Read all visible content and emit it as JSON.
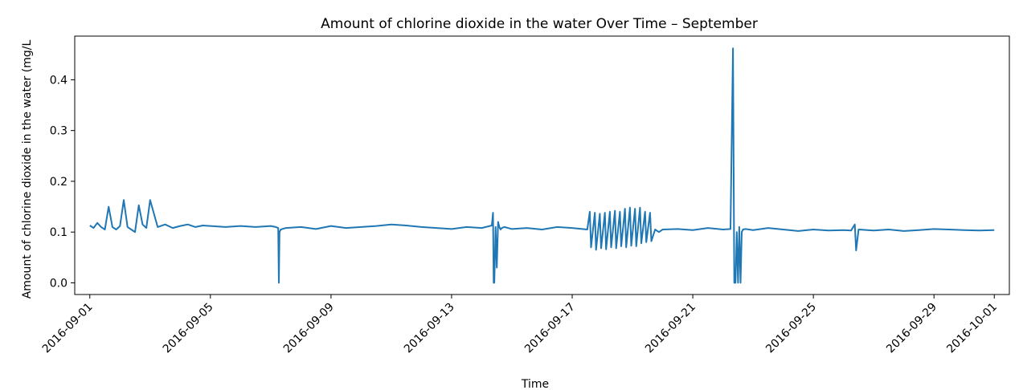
{
  "chart_data": {
    "type": "line",
    "title": "Amount of chlorine dioxide in the water Over Time – September",
    "xlabel": "Time",
    "ylabel": "Amount of chlorine dioxide in the water (mg/L",
    "xlim": [
      "2016-08-31T12:00",
      "2016-10-01T12:00"
    ],
    "ylim": [
      -0.023,
      0.486
    ],
    "x_ticks": [
      "2016-09-01",
      "2016-09-05",
      "2016-09-09",
      "2016-09-13",
      "2016-09-17",
      "2016-09-21",
      "2016-09-25",
      "2016-09-29",
      "2016-10-01"
    ],
    "y_ticks": [
      "0.0",
      "0.1",
      "0.2",
      "0.3",
      "0.4"
    ],
    "grid": false,
    "line_color": "#1f77b4",
    "series": [
      {
        "x": [
          "2016-09-01T00:00",
          "2016-09-01T03:00",
          "2016-09-01T06:00",
          "2016-09-01T09:00",
          "2016-09-01T12:00",
          "2016-09-01T15:00",
          "2016-09-01T18:00",
          "2016-09-01T21:00",
          "2016-09-02T00:00",
          "2016-09-02T03:00",
          "2016-09-02T06:00",
          "2016-09-02T09:00",
          "2016-09-02T12:00",
          "2016-09-02T15:00",
          "2016-09-02T18:00",
          "2016-09-02T21:00",
          "2016-09-03T00:00",
          "2016-09-03T06:00",
          "2016-09-03T12:00",
          "2016-09-03T18:00",
          "2016-09-04T00:00",
          "2016-09-04T06:00",
          "2016-09-04T12:00",
          "2016-09-04T18:00",
          "2016-09-05T00:00",
          "2016-09-05T12:00",
          "2016-09-06T00:00",
          "2016-09-06T12:00",
          "2016-09-07T00:00",
          "2016-09-07T04:00",
          "2016-09-07T06:00",
          "2016-09-07T06:30",
          "2016-09-07T07:00",
          "2016-09-07T08:00",
          "2016-09-07T12:00",
          "2016-09-08T00:00",
          "2016-09-08T12:00",
          "2016-09-09T00:00",
          "2016-09-09T12:00",
          "2016-09-10T00:00",
          "2016-09-10T12:00",
          "2016-09-11T00:00",
          "2016-09-11T12:00",
          "2016-09-12T00:00",
          "2016-09-12T12:00",
          "2016-09-13T00:00",
          "2016-09-13T12:00",
          "2016-09-14T00:00",
          "2016-09-14T08:00",
          "2016-09-14T09:00",
          "2016-09-14T09:30",
          "2016-09-14T10:00",
          "2016-09-14T11:00",
          "2016-09-14T12:00",
          "2016-09-14T13:00",
          "2016-09-14T14:00",
          "2016-09-14T15:00",
          "2016-09-14T16:00",
          "2016-09-14T18:00",
          "2016-09-15T00:00",
          "2016-09-15T12:00",
          "2016-09-16T00:00",
          "2016-09-16T12:00",
          "2016-09-17T00:00",
          "2016-09-17T12:00",
          "2016-09-17T14:00",
          "2016-09-17T15:00",
          "2016-09-17T18:00",
          "2016-09-17T19:00",
          "2016-09-17T22:00",
          "2016-09-17T23:00",
          "2016-09-18T02:00",
          "2016-09-18T03:00",
          "2016-09-18T06:00",
          "2016-09-18T07:00",
          "2016-09-18T10:00",
          "2016-09-18T11:00",
          "2016-09-18T14:00",
          "2016-09-18T15:00",
          "2016-09-18T18:00",
          "2016-09-18T19:00",
          "2016-09-18T22:00",
          "2016-09-18T23:00",
          "2016-09-19T02:00",
          "2016-09-19T03:00",
          "2016-09-19T06:00",
          "2016-09-19T07:00",
          "2016-09-19T10:00",
          "2016-09-19T11:00",
          "2016-09-19T14:00",
          "2016-09-19T15:00",
          "2016-09-19T18:00",
          "2016-09-19T21:00",
          "2016-09-20T00:00",
          "2016-09-20T12:00",
          "2016-09-21T00:00",
          "2016-09-21T12:00",
          "2016-09-22T00:00",
          "2016-09-22T06:00",
          "2016-09-22T08:00",
          "2016-09-22T09:00",
          "2016-09-22T10:00",
          "2016-09-22T11:00",
          "2016-09-22T12:00",
          "2016-09-22T13:00",
          "2016-09-22T14:00",
          "2016-09-22T15:00",
          "2016-09-22T16:00",
          "2016-09-22T18:00",
          "2016-09-23T00:00",
          "2016-09-23T12:00",
          "2016-09-24T00:00",
          "2016-09-24T12:00",
          "2016-09-25T00:00",
          "2016-09-25T12:00",
          "2016-09-26T00:00",
          "2016-09-26T06:00",
          "2016-09-26T09:00",
          "2016-09-26T10:00",
          "2016-09-26T12:00",
          "2016-09-27T00:00",
          "2016-09-27T12:00",
          "2016-09-28T00:00",
          "2016-09-28T12:00",
          "2016-09-29T00:00",
          "2016-09-29T12:00",
          "2016-09-30T00:00",
          "2016-09-30T12:00",
          "2016-10-01T00:00"
        ],
        "y": [
          0.113,
          0.108,
          0.118,
          0.11,
          0.105,
          0.15,
          0.11,
          0.105,
          0.112,
          0.163,
          0.11,
          0.105,
          0.1,
          0.153,
          0.115,
          0.108,
          0.163,
          0.11,
          0.115,
          0.108,
          0.112,
          0.115,
          0.11,
          0.113,
          0.112,
          0.11,
          0.112,
          0.11,
          0.112,
          0.11,
          0.108,
          0.0,
          0.1,
          0.105,
          0.108,
          0.11,
          0.106,
          0.112,
          0.108,
          0.11,
          0.112,
          0.115,
          0.113,
          0.11,
          0.108,
          0.106,
          0.11,
          0.108,
          0.113,
          0.138,
          0.0,
          0.0,
          0.11,
          0.03,
          0.12,
          0.11,
          0.105,
          0.108,
          0.11,
          0.106,
          0.108,
          0.105,
          0.11,
          0.108,
          0.105,
          0.14,
          0.07,
          0.138,
          0.065,
          0.136,
          0.068,
          0.138,
          0.066,
          0.14,
          0.07,
          0.142,
          0.068,
          0.14,
          0.072,
          0.146,
          0.07,
          0.148,
          0.073,
          0.146,
          0.072,
          0.148,
          0.078,
          0.14,
          0.08,
          0.138,
          0.082,
          0.105,
          0.1,
          0.105,
          0.106,
          0.104,
          0.108,
          0.105,
          0.106,
          0.462,
          0.0,
          0.0,
          0.1,
          0.0,
          0.11,
          0.0,
          0.1,
          0.105,
          0.106,
          0.104,
          0.108,
          0.105,
          0.102,
          0.105,
          0.103,
          0.104,
          0.103,
          0.115,
          0.064,
          0.105,
          0.103,
          0.105,
          0.102,
          0.104,
          0.106,
          0.105,
          0.104,
          0.103,
          0.104
        ]
      }
    ]
  }
}
